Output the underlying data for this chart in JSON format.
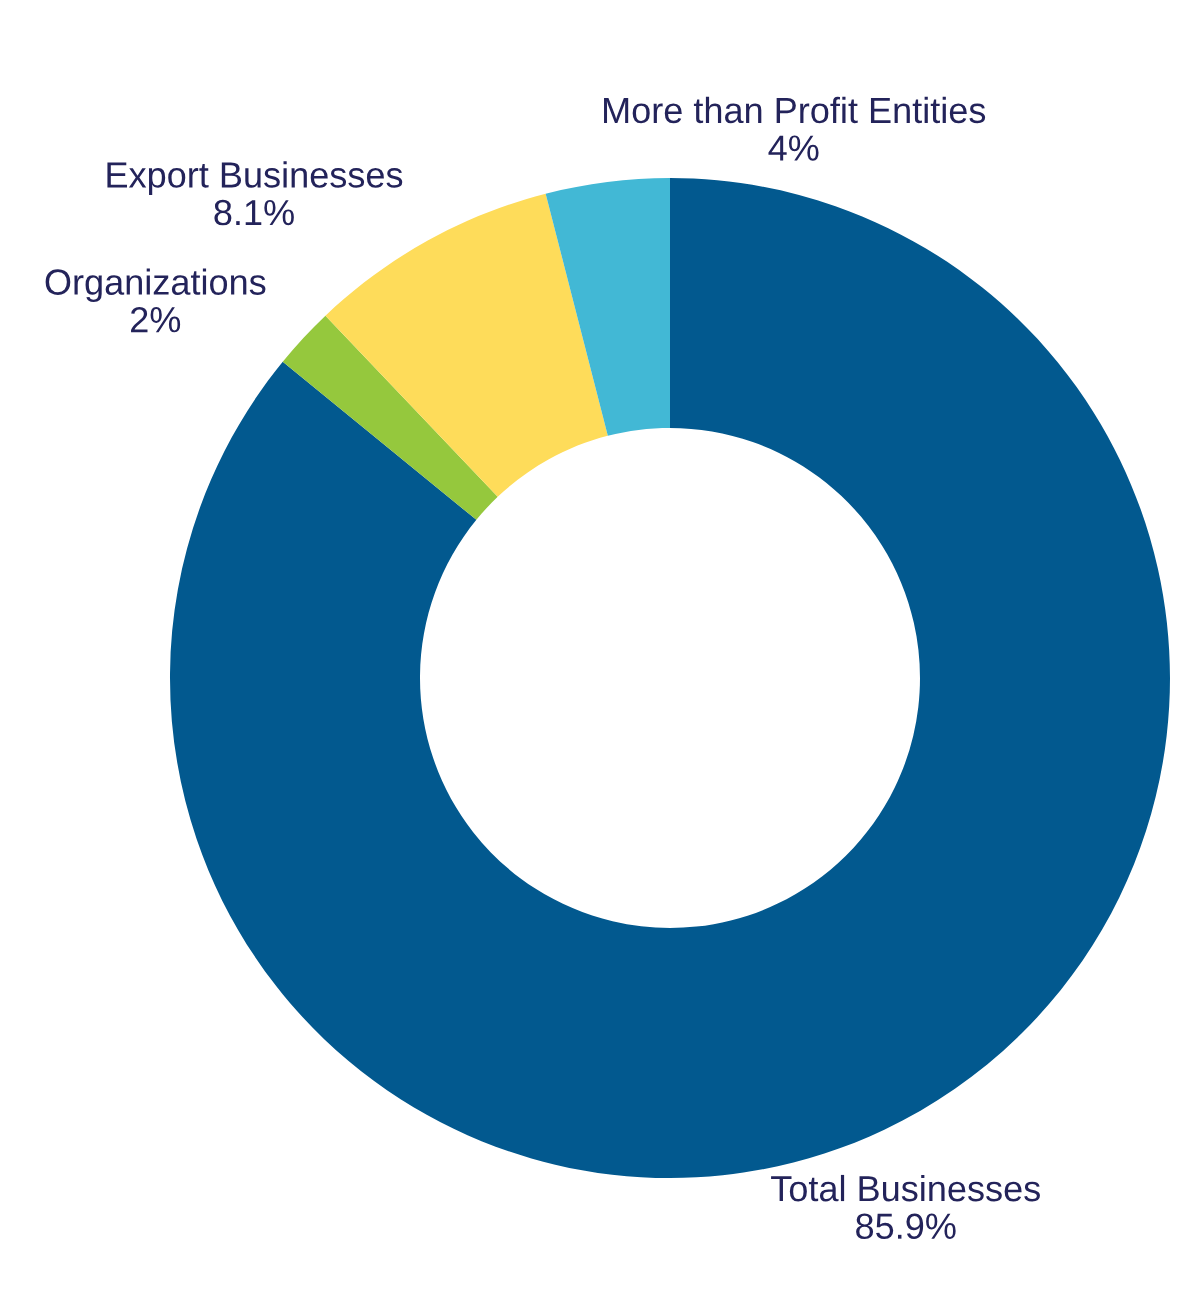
{
  "chart_data": {
    "type": "donut",
    "categories": [
      "Total Businesses",
      "Organizations",
      "Export Businesses",
      "More than Profit Entities"
    ],
    "values": [
      85.9,
      2,
      8.1,
      4
    ],
    "value_labels": [
      "85.9%",
      "2%",
      "8.1%",
      "4%"
    ],
    "colors": [
      "#02598f",
      "#95c83d",
      "#fedc5a",
      "#42b8d5"
    ]
  }
}
